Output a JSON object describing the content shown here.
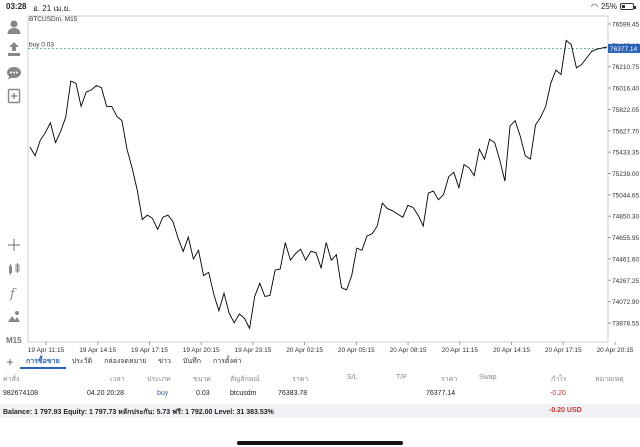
{
  "status_bar": {
    "time": "03:28",
    "date": "อ. 21 เม.ย.",
    "battery": "25%"
  },
  "chart": {
    "symbol": "BTCUSDm, M15",
    "order_label": "buy 0.03",
    "current_price": "76377.14",
    "timeframe": "M15",
    "colors": {
      "line": "#000000",
      "order_line": "#5aa0a0",
      "price_tag": "#2a62b8",
      "grid": "#eeeeee"
    }
  },
  "chart_data": {
    "type": "line",
    "title": "",
    "xlabel": "",
    "ylabel": "",
    "ylim": [
      73780,
      76700
    ],
    "y_ticks": [
      "76599.45",
      "76405.10",
      "76210.75",
      "76016.40",
      "75822.05",
      "75627.70",
      "75433.35",
      "75239.00",
      "75044.65",
      "74850.30",
      "74655.95",
      "74461.60",
      "74267.25",
      "74072.90",
      "73878.55"
    ],
    "y_tick_values": [
      76599.45,
      76405.1,
      76210.75,
      76016.4,
      75822.05,
      75627.7,
      75433.35,
      75239.0,
      75044.65,
      74850.3,
      74655.95,
      74461.6,
      74267.25,
      74072.9,
      73878.55
    ],
    "x_ticks": [
      "19 Apr 11:15",
      "19 Apr 14:15",
      "19 Apr 17:15",
      "19 Apr 20:15",
      "19 Apr 23:15",
      "20 Apr 02:15",
      "20 Apr 05:15",
      "20 Apr 08:15",
      "20 Apr 11:15",
      "20 Apr 14:15",
      "20 Apr 17:15",
      "20 Apr 20:15"
    ],
    "order_price": 76377.14,
    "series": [
      {
        "values": [
          75480,
          75400,
          75540,
          75610,
          75700,
          75520,
          75620,
          75750,
          76080,
          76060,
          75850,
          75980,
          76000,
          76040,
          76020,
          75850,
          75850,
          75760,
          75720,
          75460,
          75290,
          75090,
          74820,
          74860,
          74830,
          74730,
          74840,
          74860,
          74800,
          74650,
          74530,
          74660,
          74460,
          74540,
          74310,
          74340,
          74140,
          73990,
          74150,
          73970,
          73880,
          73960,
          73920,
          73830,
          74120,
          74240,
          74120,
          74130,
          74360,
          74370,
          74610,
          74450,
          74510,
          74550,
          74450,
          74530,
          74520,
          74380,
          74610,
          74450,
          74500,
          74200,
          74180,
          74310,
          74560,
          74540,
          74670,
          74690,
          74760,
          74970,
          74920,
          74900,
          74870,
          74840,
          74950,
          74930,
          74860,
          74760,
          75060,
          75080,
          75000,
          75050,
          75210,
          75250,
          75110,
          75320,
          75290,
          75220,
          75460,
          75370,
          75550,
          75520,
          75360,
          75170,
          75670,
          75720,
          75580,
          75400,
          75370,
          75680,
          75750,
          75850,
          76060,
          76180,
          76140,
          76450,
          76410,
          76200,
          76230,
          76290,
          76350,
          76370,
          76380,
          76390
        ]
      }
    ]
  },
  "tabs": {
    "items": [
      "การซื้อขาย",
      "ประวัติ",
      "กล่องจดหมาย",
      "ข่าว",
      "บันทึก",
      "การตั้งค่า"
    ],
    "active_index": 0
  },
  "table": {
    "headers": {
      "ticket": "ค่าสั่ง",
      "time": "เวลา",
      "type": "ประเภท",
      "size": "ขนาด",
      "symbol": "สัญลักษณ์",
      "price": "ราคา",
      "sl": "S/L",
      "tp": "T/P",
      "price2": "ราคา",
      "swap": "Swap",
      "profit": "กำไร",
      "comment": "หมายเหตุ"
    },
    "row": {
      "ticket": "982674108",
      "time": "04.20 20:28",
      "type": "buy",
      "size": "0.03",
      "symbol": "btcusdm",
      "price": "76383.78",
      "sl": "",
      "tp": "",
      "price2": "76377.14",
      "swap": "",
      "profit": "-0.20",
      "comment": ""
    }
  },
  "balance": {
    "text": "Balance: 1 797.93 Equity: 1 797.73 หลักประกัน: 5.73 ฟรี: 1 792.00 Level: 31 383.53%",
    "pl": "-0.20  USD"
  }
}
